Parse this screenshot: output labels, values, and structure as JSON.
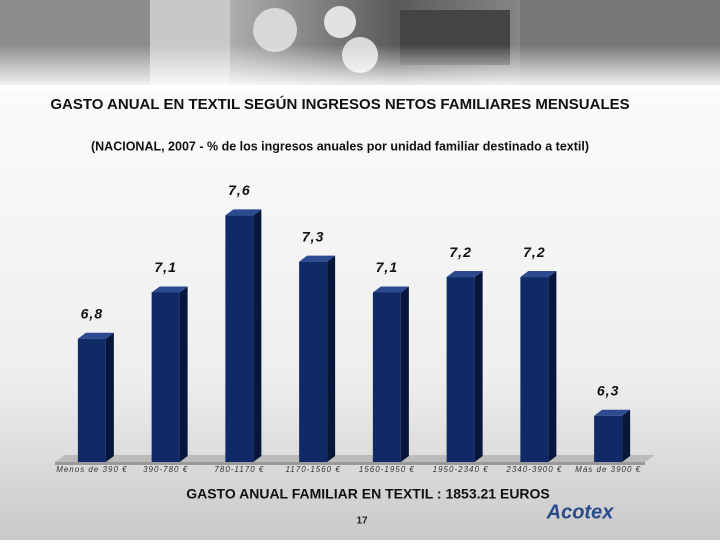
{
  "chart_data": {
    "type": "bar",
    "title": "GASTO ANUAL EN TEXTIL SEGÚN INGRESOS NETOS FAMILIARES MENSUALES",
    "subtitle": "(NACIONAL, 2007 - % de los ingresos anuales por unidad familiar destinado a textil)",
    "categories": [
      "Menos de 390 €",
      "390-780 €",
      "780-1170 €",
      "1170-1560 €",
      "1560-1950 €",
      "1950-2340 €",
      "2340-3900 €",
      "Más de 3900 €"
    ],
    "values": [
      6.8,
      7.1,
      7.6,
      7.3,
      7.1,
      7.2,
      7.2,
      6.3
    ],
    "value_labels": [
      "6,8",
      "7,1",
      "7,6",
      "7,3",
      "7,1",
      "7,2",
      "7,2",
      "6,3"
    ],
    "color": "#0f2a66",
    "ylim": [
      6,
      7.7
    ],
    "footer": "GASTO ANUAL FAMILIAR EN TEXTIL : 1853.21 EUROS",
    "page_number": "17",
    "logo": "Acotex"
  }
}
